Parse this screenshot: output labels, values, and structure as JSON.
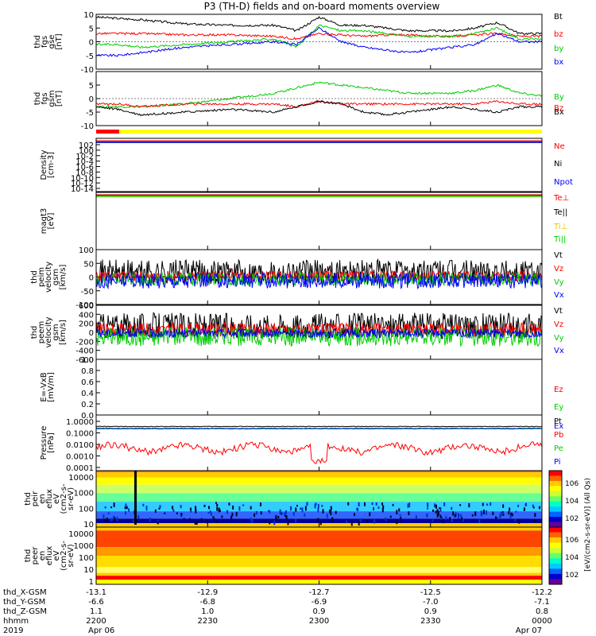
{
  "title": "P3 (TH-D) fields and on-board moments overview",
  "chart_data": [
    {
      "id": "fgs_gse",
      "type": "line",
      "ylabel": [
        "thd",
        "fgs",
        "gse",
        "[nT]"
      ],
      "ylim": [
        -10,
        10
      ],
      "yticks": [
        -10,
        -5,
        0,
        5,
        10
      ],
      "x": [
        0,
        0.05,
        0.1,
        0.2,
        0.3,
        0.4,
        0.45,
        0.5,
        0.55,
        0.6,
        0.65,
        0.7,
        0.75,
        0.8,
        0.85,
        0.9,
        0.95,
        1.0
      ],
      "series": [
        {
          "name": "Bt",
          "color": "#000000",
          "values": [
            9,
            8.5,
            8,
            6.5,
            6,
            6,
            4,
            9,
            6,
            6,
            5,
            4,
            4,
            4,
            5,
            7,
            3,
            3
          ]
        },
        {
          "name": "bz",
          "color": "#ff0000",
          "values": [
            3,
            3,
            3,
            2.5,
            2.5,
            2,
            1,
            3,
            2.5,
            2,
            2.5,
            2.5,
            2,
            2,
            2.5,
            3,
            2,
            2
          ]
        },
        {
          "name": "by",
          "color": "#00cc00",
          "values": [
            -1,
            -1,
            -2,
            -1,
            0,
            1,
            -2,
            6,
            4,
            4,
            3,
            2,
            2,
            2,
            3,
            5,
            1,
            1
          ]
        },
        {
          "name": "bx",
          "color": "#0000ff",
          "values": [
            -5,
            -5,
            -4,
            -2,
            -1,
            0,
            -1,
            5,
            0,
            -2,
            -3,
            -4,
            -3,
            -2,
            -1,
            3,
            0,
            0
          ]
        }
      ]
    },
    {
      "id": "fgs_gsm",
      "type": "line",
      "ylabel": [
        "thd",
        "fgs",
        "gsm",
        "[nT]"
      ],
      "ylim": [
        -10,
        10
      ],
      "yticks": [
        -10,
        -5,
        0,
        5
      ],
      "x": [
        0,
        0.05,
        0.1,
        0.2,
        0.3,
        0.4,
        0.45,
        0.5,
        0.55,
        0.6,
        0.65,
        0.7,
        0.75,
        0.8,
        0.85,
        0.9,
        0.95,
        1.0
      ],
      "series": [
        {
          "name": "By",
          "color": "#00cc00",
          "values": [
            -3,
            -3,
            -3,
            -2,
            0,
            2,
            4,
            6,
            5,
            4,
            3,
            2,
            2,
            2,
            3,
            5,
            2,
            1
          ]
        },
        {
          "name": "Bz",
          "color": "#ff0000",
          "values": [
            -2,
            -2,
            -3,
            -2,
            -2,
            -2,
            -3,
            -1,
            -2,
            -2,
            -2,
            -2,
            -2,
            -2,
            -2,
            -1,
            -2,
            -2
          ]
        },
        {
          "name": "Bx",
          "color": "#000000",
          "values": [
            -3,
            -4,
            -6,
            -5,
            -4,
            -5,
            -3,
            -1,
            -2,
            -5,
            -6,
            -5,
            -4,
            -3,
            -4,
            -5,
            -3,
            -3
          ]
        }
      ]
    },
    {
      "id": "density",
      "type": "line",
      "ylabel": [
        "Density",
        "[cm-3]"
      ],
      "ylim": [
        1e-14,
        100
      ],
      "scale": "log",
      "yticks_text": [
        "10^2",
        "10^0",
        "10^-2",
        "10^-4",
        "10^-6",
        "10^-8",
        "10^-10",
        "10^-12",
        "10^-14"
      ],
      "series": [
        {
          "name": "Ne",
          "color": "#ff0000",
          "values": [
            2,
            2
          ]
        },
        {
          "name": "Ni",
          "color": "#000000",
          "values": [
            1.5,
            1.5
          ]
        },
        {
          "name": "Npot",
          "color": "#0000ff",
          "values": [
            1,
            1
          ]
        }
      ]
    },
    {
      "id": "temperature",
      "type": "line",
      "ylabel": [
        "magt3",
        "[eV]"
      ],
      "ylim": [
        1e-14,
        1000
      ],
      "scale": "log",
      "series": [
        {
          "name": "Te⊥",
          "color": "#ff0000"
        },
        {
          "name": "Te||",
          "color": "#000000"
        },
        {
          "name": "Ti⊥",
          "color": "#ddcc00"
        },
        {
          "name": "Ti||",
          "color": "#00cc00"
        }
      ]
    },
    {
      "id": "peim_velocity",
      "type": "line",
      "ylabel": [
        "thd",
        "peim",
        "velocity",
        "gsm",
        "[km/s]"
      ],
      "ylim": [
        -100,
        100
      ],
      "yticks": [
        -100,
        -50,
        0,
        50,
        100
      ],
      "series": [
        {
          "name": "Vt",
          "color": "#000000"
        },
        {
          "name": "Vz",
          "color": "#ff0000"
        },
        {
          "name": "Vy",
          "color": "#00cc00"
        },
        {
          "name": "Vx",
          "color": "#0000ff"
        }
      ]
    },
    {
      "id": "peem_velocity",
      "type": "line",
      "ylabel": [
        "thd",
        "peem",
        "velocity",
        "gsm",
        "[km/s]"
      ],
      "ylim": [
        -600,
        600
      ],
      "yticks": [
        -600,
        -400,
        -200,
        0,
        200,
        400,
        600
      ],
      "series": [
        {
          "name": "Vt",
          "color": "#000000"
        },
        {
          "name": "Vz",
          "color": "#ff0000"
        },
        {
          "name": "Vy",
          "color": "#00cc00"
        },
        {
          "name": "Vx",
          "color": "#0000ff"
        }
      ]
    },
    {
      "id": "efield",
      "type": "line",
      "ylabel": [
        "E=-VxB",
        "[mV/m]"
      ],
      "ylim": [
        0,
        1
      ],
      "yticks": [
        0,
        0.2,
        0.4,
        0.6,
        0.8,
        1.0
      ],
      "series": [
        {
          "name": "Ez",
          "color": "#ff0000"
        },
        {
          "name": "Ey",
          "color": "#00cc00"
        },
        {
          "name": "Ex",
          "color": "#0000ff"
        }
      ]
    },
    {
      "id": "pressure",
      "type": "line",
      "ylabel": [
        "Pressure",
        "[nPa]"
      ],
      "ylim": [
        0.0001,
        1
      ],
      "scale": "log",
      "yticks_text": [
        "1.0000",
        "0.1000",
        "0.0100",
        "0.0010",
        "0.0001"
      ],
      "series": [
        {
          "name": "Pt",
          "color": "#000000",
          "level": 0.15
        },
        {
          "name": "Pb",
          "color": "#ff0000",
          "level": 0.004
        },
        {
          "name": "Pe",
          "color": "#00cc00",
          "level": 0.1
        },
        {
          "name": "Pi",
          "color": "#0000ff",
          "level": 0.11
        }
      ]
    },
    {
      "id": "peir_eflux",
      "type": "heatmap",
      "ylabel": [
        "thd",
        "peir",
        "en",
        "eflux",
        "eV",
        "(cm^2-s-",
        "sr-eV)"
      ],
      "yticks_text": [
        "10000",
        "1000",
        "100",
        "10"
      ]
    },
    {
      "id": "peer_eflux",
      "type": "heatmap",
      "ylabel": [
        "thd",
        "peer",
        "en",
        "eflux",
        "eV",
        "(cm^2-s-",
        "sr-eV)"
      ],
      "yticks_text": [
        "10000",
        "1000",
        "100",
        "10",
        "1"
      ]
    }
  ],
  "legends": {
    "fgs_gse": [
      "Bt",
      "bz",
      "by",
      "bx"
    ],
    "fgs_gsm": [
      "By",
      "Bz",
      "Bx"
    ],
    "density": [
      "Ne",
      "Ni",
      "Npot"
    ],
    "temperature": [
      "Te⊥",
      "Te||",
      "Ti⊥",
      "Ti||"
    ],
    "peim_velocity": [
      "Vt",
      "Vz",
      "Vy",
      "Vx"
    ],
    "peem_velocity": [
      "Vt",
      "Vz",
      "Vy",
      "Vx"
    ],
    "efield": [
      "Ez",
      "Ey",
      "Ex"
    ],
    "pressure": [
      "Pt",
      "Pb",
      "Pe",
      "Pi"
    ]
  },
  "colorbar": {
    "label": "[eV/(cm^2-s-sr-eV)] (All Qs)",
    "ticks_text": [
      "10^6",
      "10^4",
      "10^2",
      "10^6",
      "10^4",
      "10^2"
    ]
  },
  "x_axis": {
    "row_labels": [
      "thd_X-GSM",
      "thd_Y-GSM",
      "thd_Z-GSM",
      "hhmm",
      "2019"
    ],
    "columns": [
      [
        "-13.1",
        "-6.6",
        "1.1",
        "2200",
        "Apr 06"
      ],
      [
        "-12.9",
        "-6.8",
        "1.0",
        "2230",
        ""
      ],
      [
        "-12.7",
        "-6.9",
        "0.9",
        "2300",
        ""
      ],
      [
        "-12.5",
        "-7.0",
        "0.9",
        "2330",
        ""
      ],
      [
        "-12.2",
        "-7.1",
        "0.8",
        "0000",
        "Apr 07"
      ]
    ]
  }
}
